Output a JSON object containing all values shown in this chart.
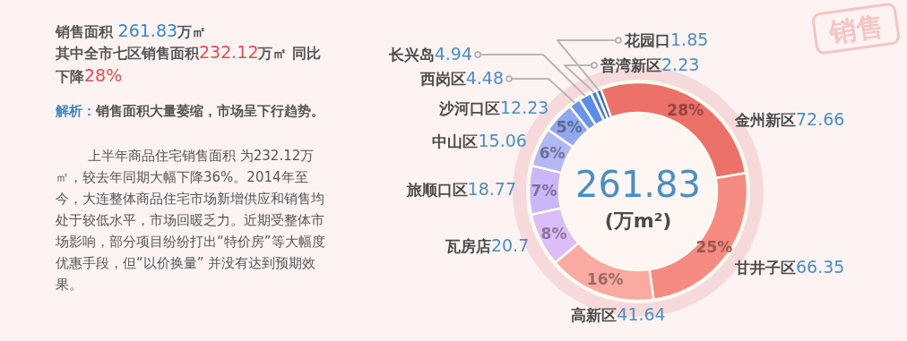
{
  "chart_data": {
    "type": "donut",
    "title": "销售面积 261.83万㎡",
    "subtitle": "其中全市七区销售面积232.12万㎡ 同比下降28%",
    "categories": [
      "金州新区",
      "甘井子区",
      "高新区",
      "瓦房店",
      "旅顺口区",
      "中山区",
      "沙河口区",
      "西岗区",
      "长兴岛",
      "普湾新区",
      "花园口"
    ],
    "values": [
      72.66,
      66.35,
      41.64,
      20.7,
      18.77,
      15.06,
      12.23,
      4.48,
      4.94,
      2.23,
      1.85
    ],
    "colors": [
      "#ec7168",
      "#f78a81",
      "#fbaaa2",
      "#dcbdf7",
      "#cbb7f8",
      "#b2b8f3",
      "#91a8ee",
      "#6a96ea",
      "#5b8de6",
      "#4a7ed8",
      "#3c6bb8"
    ],
    "value_labels": [
      "72.66",
      "66.35",
      "41.64",
      "20.7",
      "18.77",
      "15.06",
      "12.23",
      "4.48",
      "4.94",
      "2.23",
      "1.85"
    ],
    "annotations": [
      "解析：销售面积大量萎缩，市场呈下行趋势。",
      "上半年商品住宅销售面积 为232.12万㎡，较去年同期大幅下降36%。2014年至今，大连整体商品住宅市场新增供应和销售均处于较低水平，市场回暖乏力。近期受整体市场影响，部分项目纷纷打出“特价房”等大幅度优惠手段，但“以价换量” 并没有达到预期效果。",
      "261.83",
      "(万m²)",
      "销售",
      {
        "text": "28%",
        "x": "金州新区"
      },
      {
        "text": "25%",
        "x": "甘井子区"
      },
      {
        "text": "16%",
        "x": "高新区"
      },
      {
        "text": "8%",
        "x": "瓦房店"
      },
      {
        "text": "7%",
        "x": "旅顺口区"
      },
      {
        "text": "6%",
        "x": "中山区"
      },
      {
        "text": "5%",
        "x": "沙河口区"
      }
    ]
  }
}
